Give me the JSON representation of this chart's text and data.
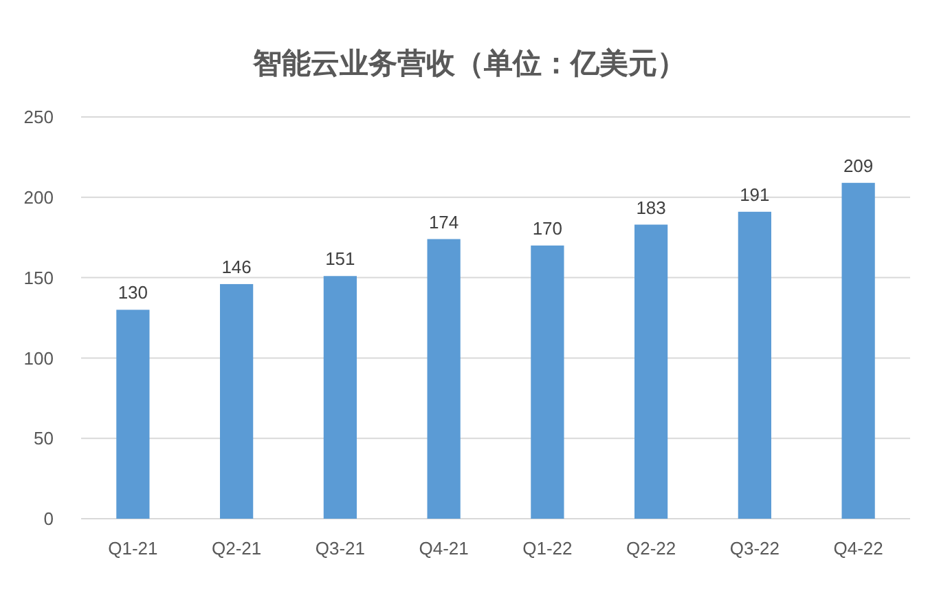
{
  "chart_data": {
    "type": "bar",
    "title": "智能云业务营收（单位：亿美元）",
    "categories": [
      "Q1-21",
      "Q2-21",
      "Q3-21",
      "Q4-21",
      "Q1-22",
      "Q2-22",
      "Q3-22",
      "Q4-22"
    ],
    "values": [
      130,
      146,
      151,
      174,
      170,
      183,
      191,
      209
    ],
    "color": "#5b9bd5",
    "ylim": [
      0,
      250
    ],
    "yticks": [
      0,
      50,
      100,
      150,
      200,
      250
    ],
    "grid": "y",
    "data_labels": true
  }
}
